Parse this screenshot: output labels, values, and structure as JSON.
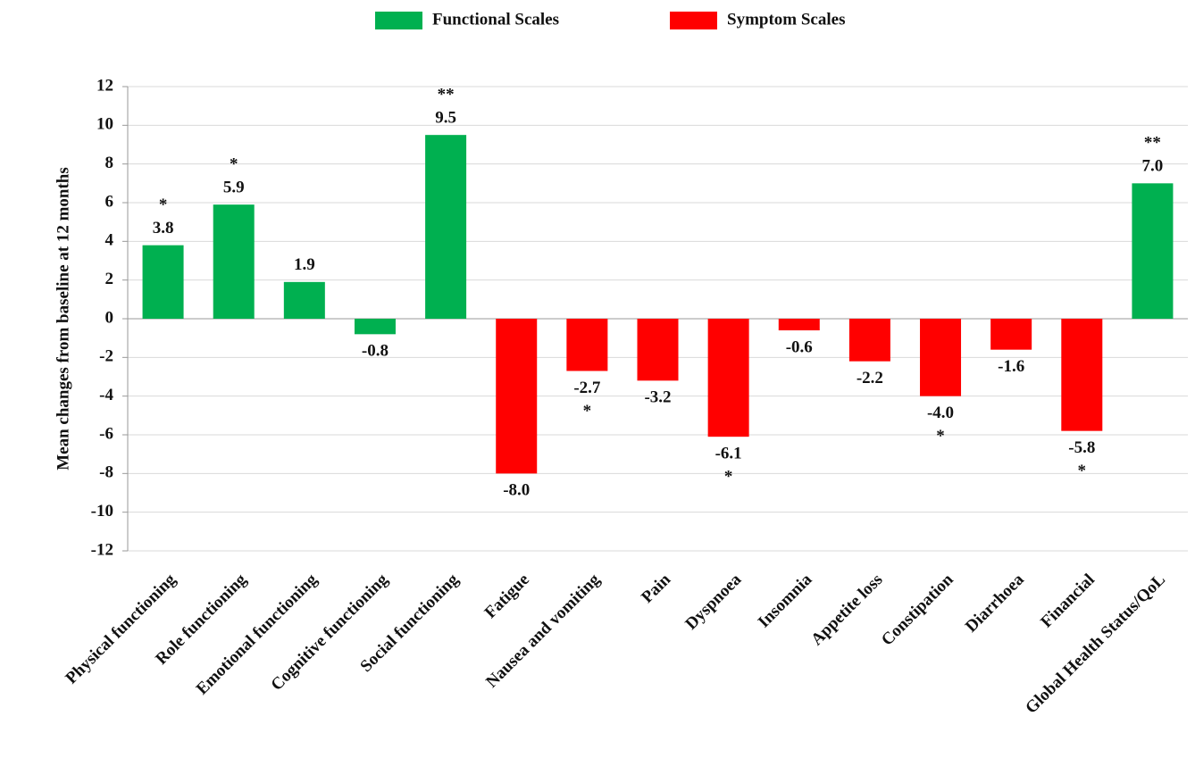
{
  "chart_data": {
    "type": "bar",
    "y_label": "Mean changes from baseline at 12 months",
    "categories": [
      "Physical functioning",
      "Role functioning",
      "Emotional functioning",
      "Cognitive functioning",
      "Social functioning",
      "Fatigue",
      "Nausea and vomiting",
      "Pain",
      "Dyspnoea",
      "Insomnia",
      "Appetite loss",
      "Constipation",
      "Diarrhoea",
      "Financial",
      "Global Health Status/QoL"
    ],
    "series": [
      {
        "name": "Functional Scales",
        "color": "#00b050",
        "values": [
          3.8,
          5.9,
          1.9,
          -0.8,
          9.5,
          null,
          null,
          null,
          null,
          null,
          null,
          null,
          null,
          null,
          7.0
        ],
        "value_labels": [
          "3.8",
          "5.9",
          "1.9",
          "-0.8",
          "9.5",
          null,
          null,
          null,
          null,
          null,
          null,
          null,
          null,
          null,
          "7.0"
        ],
        "significance": [
          "*",
          "*",
          null,
          null,
          "**",
          null,
          null,
          null,
          null,
          null,
          null,
          null,
          null,
          null,
          "**"
        ]
      },
      {
        "name": "Symptom Scales",
        "color": "#ff0000",
        "values": [
          null,
          null,
          null,
          null,
          null,
          -8.0,
          -2.7,
          -3.2,
          -6.1,
          -0.6,
          -2.2,
          -4.0,
          -1.6,
          -5.8,
          null
        ],
        "value_labels": [
          null,
          null,
          null,
          null,
          null,
          "-8.0",
          "-2.7",
          "-3.2",
          "-6.1",
          "-0.6",
          "-2.2",
          "-4.0",
          "-1.6",
          "-5.8",
          null
        ],
        "significance": [
          null,
          null,
          null,
          null,
          null,
          null,
          "*",
          null,
          "*",
          null,
          null,
          "*",
          null,
          "*",
          null
        ]
      }
    ],
    "ylim": [
      -12,
      12
    ],
    "yticks": [
      12,
      10,
      8,
      6,
      4,
      2,
      0,
      -2,
      -4,
      -6,
      -8,
      -10,
      -12
    ],
    "grid": true
  }
}
